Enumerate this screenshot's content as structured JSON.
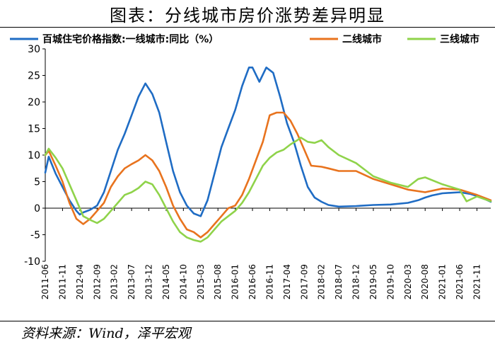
{
  "page": {
    "title": "图表：分线城市房价涨势差异明显",
    "source": "资料来源：Wind，泽平宏观"
  },
  "chart_data": {
    "type": "line",
    "legend_position": "top",
    "grid": false,
    "ylim": [
      -10,
      30
    ],
    "yticks": [
      -10,
      -5,
      0,
      5,
      10,
      15,
      20,
      25,
      30
    ],
    "x_start": "2011-06",
    "x_end": "2022-03",
    "x_tick_labels": [
      "2011-06",
      "2011-11",
      "2012-04",
      "2012-09",
      "2013-02",
      "2013-07",
      "2013-12",
      "2014-05",
      "2014-10",
      "2015-03",
      "2015-08",
      "2016-01",
      "2016-06",
      "2016-11",
      "2017-04",
      "2017-09",
      "2018-02",
      "2018-07",
      "2018-12",
      "2019-05",
      "2019-10",
      "2020-03",
      "2020-08",
      "2021-01",
      "2021-06",
      "2021-11"
    ],
    "series": [
      {
        "name": "百城住宅价格指数:一线城市:同比（%）",
        "color": "#1f6cc4",
        "points": [
          [
            "2011-06",
            6.7
          ],
          [
            "2011-07",
            9.7
          ],
          [
            "2011-09",
            6.5
          ],
          [
            "2011-11",
            4.0
          ],
          [
            "2012-01",
            1.5
          ],
          [
            "2012-03",
            -0.5
          ],
          [
            "2012-04",
            -1.2
          ],
          [
            "2012-05",
            -0.8
          ],
          [
            "2012-07",
            -0.3
          ],
          [
            "2012-09",
            0.5
          ],
          [
            "2012-11",
            3.0
          ],
          [
            "2013-01",
            7.0
          ],
          [
            "2013-03",
            11.0
          ],
          [
            "2013-05",
            14.0
          ],
          [
            "2013-07",
            17.5
          ],
          [
            "2013-09",
            21.0
          ],
          [
            "2013-11",
            23.5
          ],
          [
            "2014-01",
            21.5
          ],
          [
            "2014-03",
            18.0
          ],
          [
            "2014-05",
            12.5
          ],
          [
            "2014-07",
            7.0
          ],
          [
            "2014-09",
            3.0
          ],
          [
            "2014-11",
            0.5
          ],
          [
            "2015-01",
            -1.0
          ],
          [
            "2015-03",
            -1.5
          ],
          [
            "2015-05",
            1.5
          ],
          [
            "2015-07",
            6.5
          ],
          [
            "2015-09",
            11.5
          ],
          [
            "2015-11",
            15.0
          ],
          [
            "2016-01",
            18.5
          ],
          [
            "2016-03",
            23.0
          ],
          [
            "2016-05",
            26.5
          ],
          [
            "2016-06",
            26.5
          ],
          [
            "2016-08",
            23.8
          ],
          [
            "2016-10",
            26.5
          ],
          [
            "2016-12",
            25.5
          ],
          [
            "2017-02",
            21.0
          ],
          [
            "2017-04",
            16.0
          ],
          [
            "2017-06",
            12.5
          ],
          [
            "2017-08",
            8.0
          ],
          [
            "2017-10",
            4.0
          ],
          [
            "2017-12",
            2.0
          ],
          [
            "2018-02",
            1.2
          ],
          [
            "2018-04",
            0.6
          ],
          [
            "2018-07",
            0.3
          ],
          [
            "2018-12",
            0.4
          ],
          [
            "2019-05",
            0.6
          ],
          [
            "2019-10",
            0.7
          ],
          [
            "2020-03",
            1.0
          ],
          [
            "2020-06",
            1.5
          ],
          [
            "2020-08",
            2.0
          ],
          [
            "2020-10",
            2.4
          ],
          [
            "2021-01",
            2.8
          ],
          [
            "2021-06",
            3.0
          ],
          [
            "2021-09",
            2.7
          ],
          [
            "2021-12",
            2.1
          ],
          [
            "2022-03",
            1.2
          ]
        ]
      },
      {
        "name": "二线城市",
        "color": "#e8731e",
        "points": [
          [
            "2011-06",
            10.0
          ],
          [
            "2011-07",
            10.8
          ],
          [
            "2011-09",
            8.0
          ],
          [
            "2011-11",
            5.0
          ],
          [
            "2012-01",
            1.0
          ],
          [
            "2012-03",
            -2.0
          ],
          [
            "2012-05",
            -3.0
          ],
          [
            "2012-07",
            -2.0
          ],
          [
            "2012-09",
            -0.5
          ],
          [
            "2012-11",
            1.0
          ],
          [
            "2013-01",
            4.0
          ],
          [
            "2013-03",
            6.0
          ],
          [
            "2013-05",
            7.5
          ],
          [
            "2013-07",
            8.3
          ],
          [
            "2013-09",
            9.0
          ],
          [
            "2013-11",
            10.0
          ],
          [
            "2014-01",
            9.0
          ],
          [
            "2014-03",
            7.0
          ],
          [
            "2014-05",
            4.0
          ],
          [
            "2014-07",
            0.5
          ],
          [
            "2014-09",
            -2.0
          ],
          [
            "2014-11",
            -4.0
          ],
          [
            "2015-01",
            -4.5
          ],
          [
            "2015-03",
            -5.5
          ],
          [
            "2015-05",
            -4.5
          ],
          [
            "2015-07",
            -3.0
          ],
          [
            "2015-09",
            -1.5
          ],
          [
            "2015-11",
            0.0
          ],
          [
            "2016-01",
            0.5
          ],
          [
            "2016-03",
            2.5
          ],
          [
            "2016-05",
            5.5
          ],
          [
            "2016-07",
            9.0
          ],
          [
            "2016-09",
            12.5
          ],
          [
            "2016-11",
            17.5
          ],
          [
            "2017-01",
            18.0
          ],
          [
            "2017-03",
            18.0
          ],
          [
            "2017-05",
            16.5
          ],
          [
            "2017-07",
            14.0
          ],
          [
            "2017-09",
            11.0
          ],
          [
            "2017-11",
            8.0
          ],
          [
            "2018-02",
            7.8
          ],
          [
            "2018-04",
            7.5
          ],
          [
            "2018-07",
            7.0
          ],
          [
            "2018-12",
            7.0
          ],
          [
            "2019-05",
            5.5
          ],
          [
            "2019-10",
            4.5
          ],
          [
            "2020-03",
            3.5
          ],
          [
            "2020-08",
            3.0
          ],
          [
            "2021-01",
            3.7
          ],
          [
            "2021-06",
            3.5
          ],
          [
            "2021-11",
            2.5
          ],
          [
            "2022-03",
            1.5
          ]
        ]
      },
      {
        "name": "三线城市",
        "color": "#8fd34a",
        "points": [
          [
            "2011-06",
            10.0
          ],
          [
            "2011-07",
            11.2
          ],
          [
            "2011-09",
            9.5
          ],
          [
            "2011-11",
            7.5
          ],
          [
            "2012-01",
            4.5
          ],
          [
            "2012-03",
            1.5
          ],
          [
            "2012-05",
            -1.5
          ],
          [
            "2012-07",
            -2.2
          ],
          [
            "2012-09",
            -2.8
          ],
          [
            "2012-11",
            -2.0
          ],
          [
            "2013-01",
            -0.5
          ],
          [
            "2013-03",
            1.0
          ],
          [
            "2013-05",
            2.5
          ],
          [
            "2013-07",
            3.0
          ],
          [
            "2013-09",
            3.8
          ],
          [
            "2013-11",
            5.0
          ],
          [
            "2014-01",
            4.5
          ],
          [
            "2014-03",
            2.5
          ],
          [
            "2014-05",
            0.0
          ],
          [
            "2014-07",
            -2.5
          ],
          [
            "2014-09",
            -4.5
          ],
          [
            "2014-11",
            -5.5
          ],
          [
            "2015-01",
            -6.0
          ],
          [
            "2015-03",
            -6.3
          ],
          [
            "2015-05",
            -5.5
          ],
          [
            "2015-07",
            -4.0
          ],
          [
            "2015-09",
            -2.5
          ],
          [
            "2015-11",
            -1.5
          ],
          [
            "2016-01",
            -0.5
          ],
          [
            "2016-03",
            1.0
          ],
          [
            "2016-05",
            3.0
          ],
          [
            "2016-07",
            5.5
          ],
          [
            "2016-09",
            8.0
          ],
          [
            "2016-11",
            9.5
          ],
          [
            "2017-01",
            10.5
          ],
          [
            "2017-03",
            11.0
          ],
          [
            "2017-05",
            12.0
          ],
          [
            "2017-07",
            12.8
          ],
          [
            "2017-08",
            13.3
          ],
          [
            "2017-10",
            12.5
          ],
          [
            "2017-12",
            12.3
          ],
          [
            "2018-02",
            12.8
          ],
          [
            "2018-04",
            11.5
          ],
          [
            "2018-07",
            10.0
          ],
          [
            "2018-12",
            8.5
          ],
          [
            "2019-05",
            6.0
          ],
          [
            "2019-10",
            4.8
          ],
          [
            "2020-03",
            4.0
          ],
          [
            "2020-06",
            5.5
          ],
          [
            "2020-08",
            5.8
          ],
          [
            "2021-01",
            4.5
          ],
          [
            "2021-06",
            3.5
          ],
          [
            "2021-08",
            1.3
          ],
          [
            "2021-11",
            2.2
          ],
          [
            "2022-03",
            1.3
          ]
        ]
      }
    ]
  }
}
